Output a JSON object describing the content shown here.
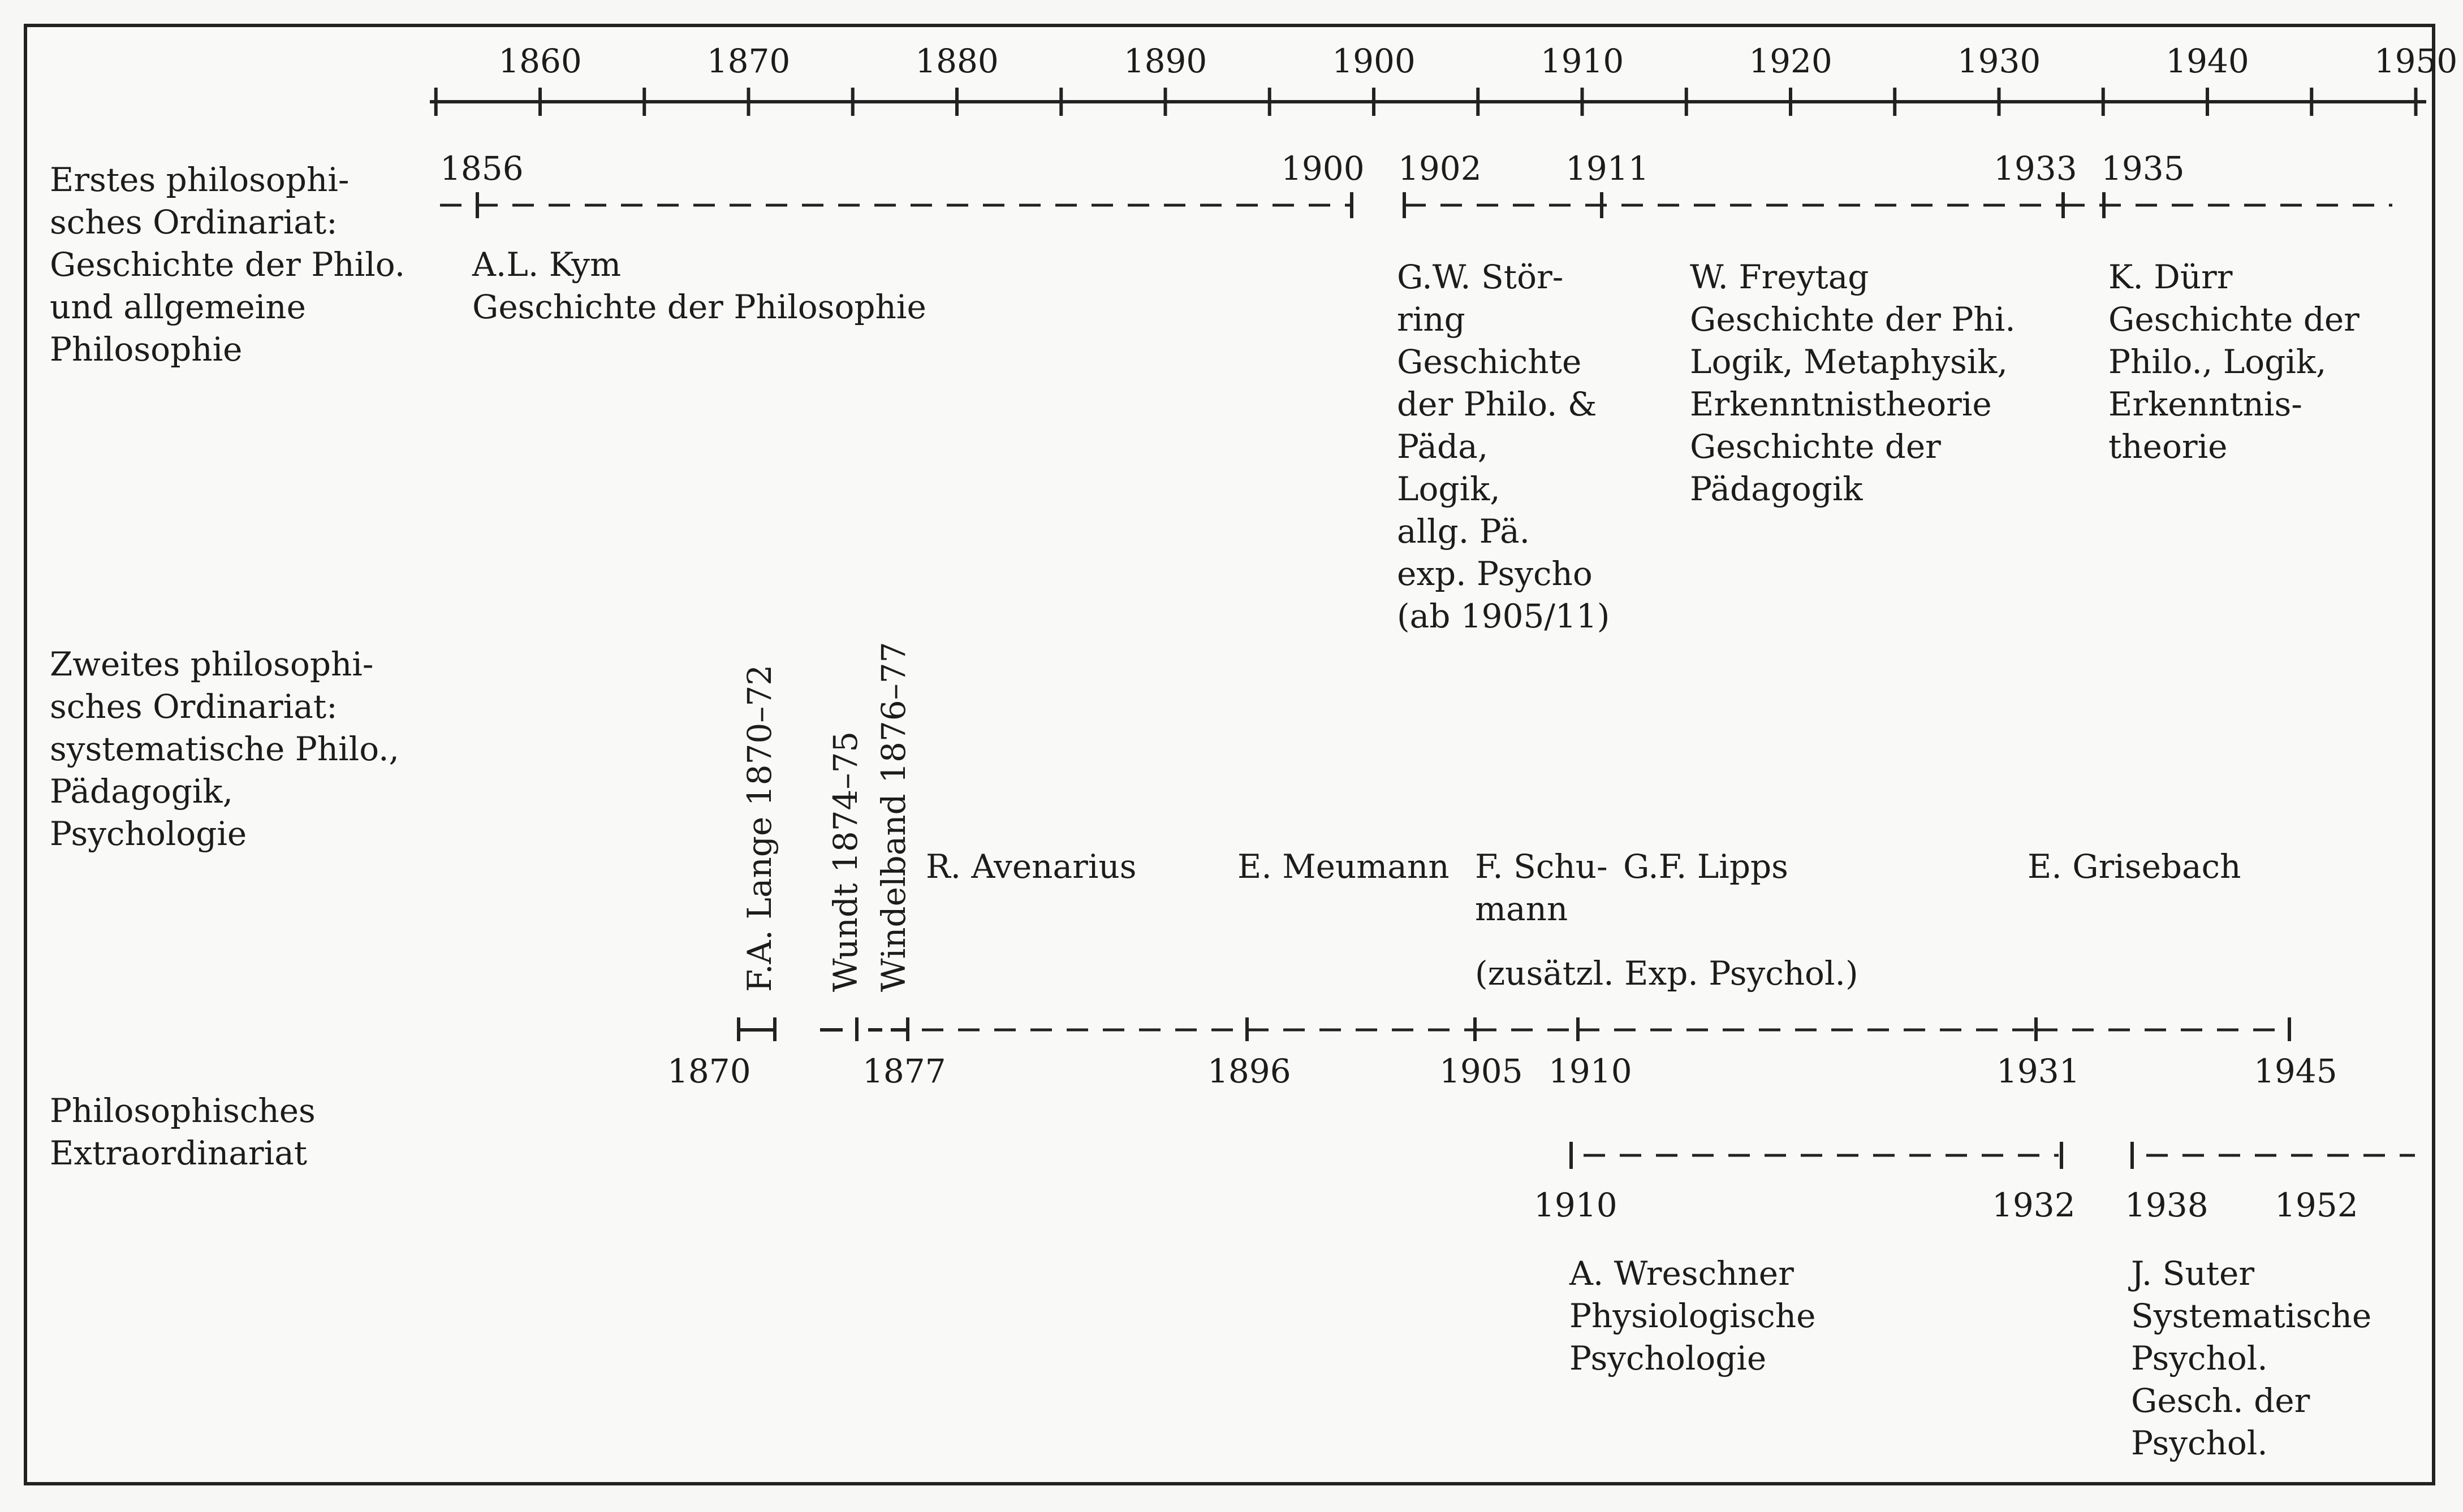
{
  "axis": {
    "ticks": [
      "1860",
      "1870",
      "1880",
      "1890",
      "1900",
      "1910",
      "1920",
      "1930",
      "1940",
      "1950"
    ]
  },
  "rows": [
    {
      "heading": [
        "Erstes philosophi-",
        "sches Ordinariat:",
        "Geschichte der Philo.",
        "und allgemeine",
        "Philosophie"
      ]
    },
    {
      "heading": [
        "Zweites philosophi-",
        "sches Ordinariat:",
        "systematische Philo.,",
        "Pädagogik,",
        "Psychologie"
      ]
    },
    {
      "heading": [
        "Philosophisches",
        "Extraordinariat"
      ]
    }
  ],
  "first_chair": {
    "years": [
      "1856",
      "1900",
      "1902",
      "1911",
      "1933",
      "1935"
    ],
    "holders": [
      {
        "lines": [
          "A.L. Kym",
          "Geschichte der Philosophie"
        ]
      },
      {
        "lines": [
          "G.W. Stör-",
          "ring",
          "Geschichte",
          "der Philo. &",
          "Päda,",
          "Logik,",
          "allg. Pä.",
          "exp. Psycho",
          "(ab 1905/11)"
        ]
      },
      {
        "lines": [
          "W. Freytag",
          "Geschichte der Phi.",
          "Logik, Metaphysik,",
          "Erkenntnistheorie",
          "Geschichte der",
          "Pädagogik"
        ]
      },
      {
        "lines": [
          "K. Dürr",
          "Geschichte der",
          "Philo., Logik,",
          "Erkenntnis-",
          "theorie"
        ]
      }
    ]
  },
  "second_chair": {
    "years": [
      "1870",
      "1877",
      "1896",
      "1905",
      "1910",
      "1931",
      "1945"
    ],
    "vertical_holders": [
      "F.A. Lange 1870–72",
      "Wundt 1874–75",
      "Windelband 1876–77"
    ],
    "holders": [
      {
        "lines": [
          "R. Avenarius"
        ]
      },
      {
        "lines": [
          "E. Meumann"
        ]
      },
      {
        "lines": [
          "F. Schu-",
          "mann"
        ]
      },
      {
        "lines": [
          "G.F. Lipps"
        ]
      },
      {
        "lines": [
          "E. Grisebach"
        ]
      }
    ],
    "note": "(zusätzl. Exp. Psychol.)"
  },
  "extraordinariat": {
    "years": [
      "1910",
      "1932",
      "1938",
      "1952"
    ],
    "holders": [
      {
        "lines": [
          "A. Wreschner",
          "Physiologische",
          "Psychologie"
        ]
      },
      {
        "lines": [
          "J. Suter",
          "Systematische",
          "Psychol.",
          "Gesch. der",
          "Psychol."
        ]
      }
    ]
  }
}
